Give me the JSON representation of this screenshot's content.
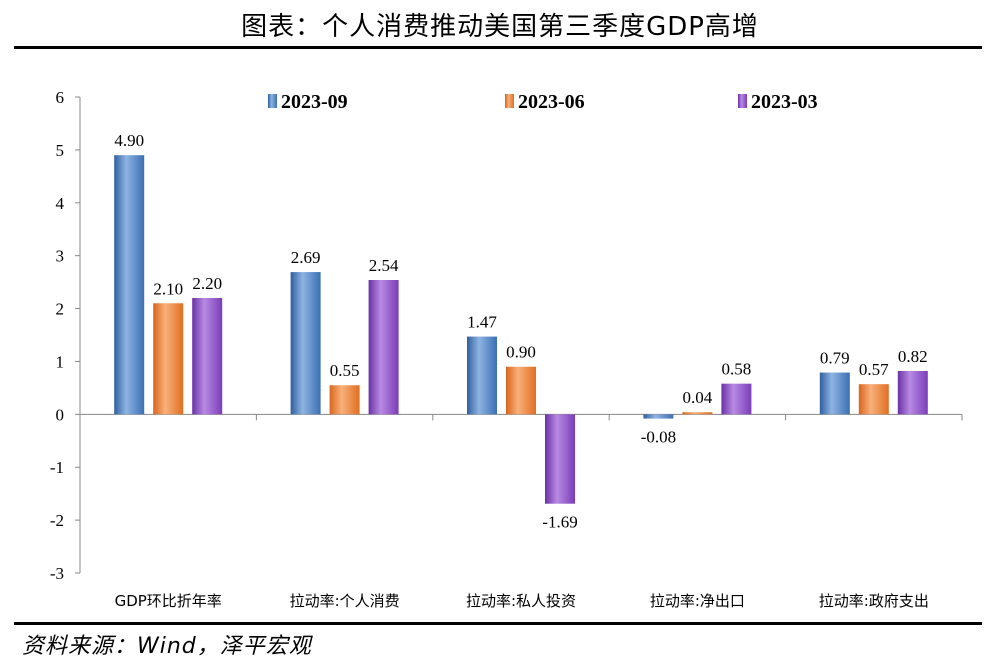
{
  "title": "图表：个人消费推动美国第三季度GDP高增",
  "source": "资料来源：Wind，泽平宏观",
  "chart_data": {
    "type": "bar",
    "categories": [
      "GDP环比折年率",
      "拉动率:个人消费",
      "拉动率:私人投资",
      "拉动率:净出口",
      "拉动率:政府支出"
    ],
    "series": [
      {
        "name": "2023-09",
        "values": [
          4.9,
          2.69,
          1.47,
          -0.08,
          0.79
        ],
        "labels": [
          "4.90",
          "2.69",
          "1.47",
          "-0.08",
          "0.79"
        ],
        "color": "#4a7fc1"
      },
      {
        "name": "2023-06",
        "values": [
          2.1,
          0.55,
          0.9,
          0.04,
          0.57
        ],
        "labels": [
          "2.10",
          "0.55",
          "0.90",
          "0.04",
          "0.57"
        ],
        "color": "#ed7d31"
      },
      {
        "name": "2023-03",
        "values": [
          2.2,
          2.54,
          -1.69,
          0.58,
          0.82
        ],
        "labels": [
          "2.20",
          "2.54",
          "-1.69",
          "0.58",
          "0.82"
        ],
        "color": "#8c52c9"
      }
    ],
    "yticks": [
      "6",
      "5",
      "4",
      "3",
      "2",
      "1",
      "0",
      "-1",
      "-2",
      "-3"
    ],
    "ylim": [
      -3,
      6
    ],
    "legend_position": "top",
    "grid": false
  }
}
